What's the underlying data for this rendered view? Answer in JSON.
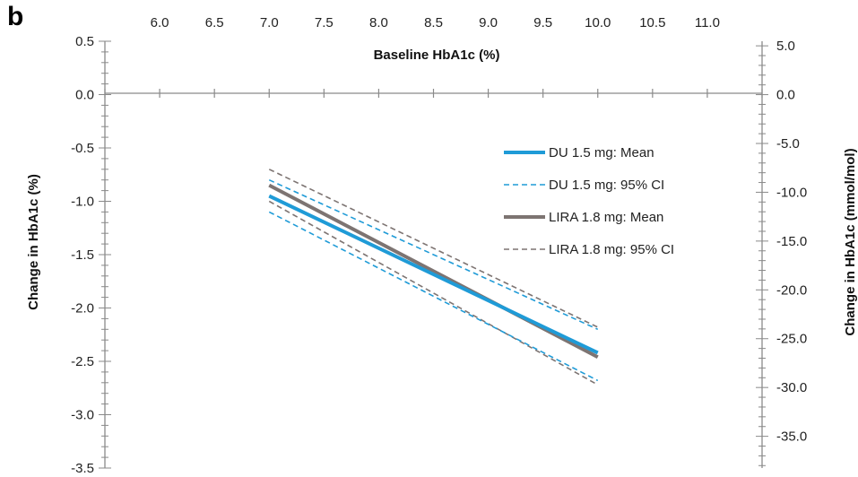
{
  "panel_label": "b",
  "colors": {
    "du": "#1f9bd7",
    "lira": "#7d7472",
    "axis": "#8a8a8a",
    "text": "#222222"
  },
  "chart_data": {
    "type": "line",
    "title": "",
    "xlabel": "Baseline HbA1c (%)",
    "ylabel": "Change in HbA1c (%)",
    "y2label": "Change in HbA1c (mmol/mol)",
    "xlim": [
      5.5,
      11.5
    ],
    "ylim": [
      -3.5,
      0.5
    ],
    "y2lim": [
      -38.25,
      5.47
    ],
    "x_axis_position": "top",
    "x_ticks": [
      "6.0",
      "6.5",
      "7.0",
      "7.5",
      "8.0",
      "8.5",
      "9.0",
      "9.5",
      "10.0",
      "10.5",
      "11.0"
    ],
    "y_ticks": [
      "0.5",
      "0.0",
      "-0.5",
      "-1.0",
      "-1.5",
      "-2.0",
      "-2.5",
      "-3.0",
      "-3.5"
    ],
    "y2_ticks": [
      "5.0",
      "0.0",
      "-5.0",
      "-10.0",
      "-15.0",
      "-20.0",
      "-25.0",
      "-30.0",
      "-35.0"
    ],
    "grid": false,
    "legend_position": "upper-right",
    "series": [
      {
        "name": "DU 1.5 mg: Mean",
        "style": "solid",
        "color": "#1f9bd7",
        "x": [
          7.0,
          10.0
        ],
        "y": [
          -0.95,
          -2.42
        ]
      },
      {
        "name": "DU 1.5 mg: 95% CI",
        "style": "dashed",
        "color": "#1f9bd7",
        "x": [
          7.0,
          10.0
        ],
        "y": [
          -0.8,
          -2.2
        ]
      },
      {
        "name": "",
        "style": "dashed",
        "color": "#1f9bd7",
        "x": [
          7.0,
          10.0
        ],
        "y": [
          -1.1,
          -2.68
        ]
      },
      {
        "name": "LIRA 1.8 mg: Mean",
        "style": "solid",
        "color": "#7d7472",
        "x": [
          7.0,
          10.0
        ],
        "y": [
          -0.85,
          -2.46
        ]
      },
      {
        "name": "LIRA 1.8 mg: 95% CI",
        "style": "dashed",
        "color": "#7d7472",
        "x": [
          7.0,
          10.0
        ],
        "y": [
          -0.7,
          -2.18
        ]
      },
      {
        "name": "",
        "style": "dashed",
        "color": "#7d7472",
        "x": [
          7.0,
          10.0
        ],
        "y": [
          -1.0,
          -2.72
        ]
      }
    ]
  }
}
